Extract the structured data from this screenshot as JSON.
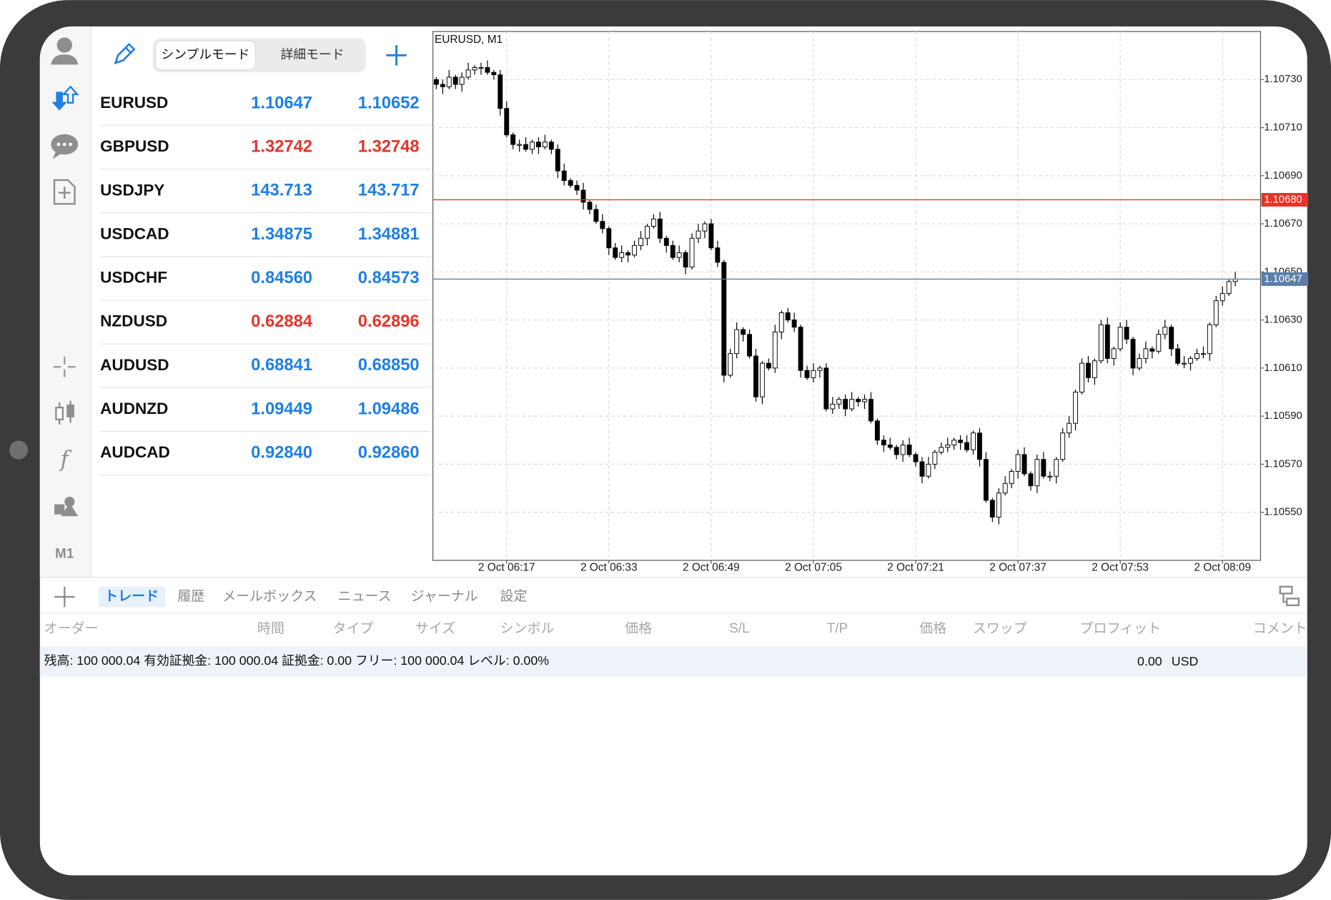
{
  "watchlist": {
    "modes": [
      "シンプルモード",
      "詳細モード"
    ],
    "rows": [
      {
        "symbol": "EURUSD",
        "bid": "1.10647",
        "ask": "1.10652",
        "color": "#1f7fe5"
      },
      {
        "symbol": "GBPUSD",
        "bid": "1.32742",
        "ask": "1.32748",
        "color": "#e2352b"
      },
      {
        "symbol": "USDJPY",
        "bid": "143.713",
        "ask": "143.717",
        "color": "#1f7fe5"
      },
      {
        "symbol": "USDCAD",
        "bid": "1.34875",
        "ask": "1.34881",
        "color": "#1f7fe5"
      },
      {
        "symbol": "USDCHF",
        "bid": "0.84560",
        "ask": "0.84573",
        "color": "#1f7fe5"
      },
      {
        "symbol": "NZDUSD",
        "bid": "0.62884",
        "ask": "0.62896",
        "color": "#e2352b"
      },
      {
        "symbol": "AUDUSD",
        "bid": "0.68841",
        "ask": "0.68850",
        "color": "#1f7fe5"
      },
      {
        "symbol": "AUDNZD",
        "bid": "1.09449",
        "ask": "1.09486",
        "color": "#1f7fe5"
      },
      {
        "symbol": "AUDCAD",
        "bid": "0.92840",
        "ask": "0.92860",
        "color": "#1f7fe5"
      }
    ]
  },
  "sidebar": {
    "timeframe": "M1"
  },
  "chart_data": {
    "type": "candlestick",
    "title": "EURUSD, M1",
    "categories": [
      null,
      null,
      null,
      null,
      null,
      null,
      null,
      null,
      null,
      null,
      null,
      "2 Oct 06:17",
      null,
      null,
      null,
      null,
      null,
      null,
      null,
      null,
      null,
      null,
      null,
      null,
      null,
      null,
      null,
      "2 Oct 06:33",
      null,
      null,
      null,
      null,
      null,
      null,
      null,
      null,
      null,
      null,
      null,
      null,
      null,
      null,
      null,
      "2 Oct 06:49",
      null,
      null,
      null,
      null,
      null,
      null,
      null,
      null,
      null,
      null,
      null,
      null,
      null,
      null,
      null,
      "2 Oct 07:05",
      null,
      null,
      null,
      null,
      null,
      null,
      null,
      null,
      null,
      null,
      null,
      null,
      null,
      null,
      null,
      "2 Oct 07:21",
      null,
      null,
      null,
      null,
      null,
      null,
      null,
      null,
      null,
      null,
      null,
      null,
      null,
      null,
      null,
      "2 Oct 07:37",
      null,
      null,
      null,
      null,
      null,
      null,
      null,
      null,
      null,
      null,
      null,
      null,
      null,
      null,
      null,
      "2 Oct 07:53",
      null,
      null,
      null,
      null,
      null,
      null,
      null,
      null,
      null,
      null,
      null,
      null,
      null,
      null,
      null,
      "2 Oct 08:09",
      null,
      null
    ],
    "open": [
      1.1073,
      1.10728,
      1.10727,
      1.10731,
      1.10728,
      1.10731,
      1.10734,
      1.10735,
      1.10735,
      1.10733,
      1.10732,
      1.10718,
      1.10707,
      1.10703,
      1.10703,
      1.10701,
      1.10704,
      1.10702,
      1.10704,
      1.10701,
      1.10692,
      1.10688,
      1.10686,
      1.10684,
      1.10679,
      1.10676,
      1.10671,
      1.10668,
      1.1066,
      1.10656,
      1.10658,
      1.10657,
      1.10661,
      1.10664,
      1.10669,
      1.10672,
      1.10664,
      1.10661,
      1.10656,
      1.10658,
      1.10652,
      1.10664,
      1.10667,
      1.1067,
      1.1066,
      1.10654,
      1.10607,
      1.10616,
      1.10626,
      1.10624,
      1.10615,
      1.10598,
      1.10612,
      1.1061,
      1.10625,
      1.10633,
      1.1063,
      1.10627,
      1.10609,
      1.10606,
      1.10609,
      1.1061,
      1.10593,
      1.10595,
      1.10597,
      1.10593,
      1.10597,
      1.10596,
      1.10597,
      1.10588,
      1.1058,
      1.10578,
      1.10577,
      1.10574,
      1.10578,
      1.10574,
      1.10571,
      1.10565,
      1.1057,
      1.10575,
      1.10577,
      1.10578,
      1.1058,
      1.10579,
      1.10576,
      1.10583,
      1.10572,
      1.10555,
      1.10548,
      1.10558,
      1.10562,
      1.10567,
      1.10574,
      1.10566,
      1.10561,
      1.10572,
      1.10565,
      1.10565,
      1.10572,
      1.10583,
      1.10587,
      1.106,
      1.10612,
      1.10606,
      1.10613,
      1.10628,
      1.10614,
      1.10618,
      1.10627,
      1.10622,
      1.1061,
      1.10614,
      1.10618,
      1.10617,
      1.10624,
      1.10627,
      1.10618,
      1.10612,
      1.10612,
      1.10614,
      1.10616,
      1.10616,
      1.10628,
      1.10638,
      1.10641,
      1.10646
    ],
    "high": [
      1.10731,
      1.1073,
      1.10734,
      1.10732,
      1.10733,
      1.10737,
      1.10736,
      1.10737,
      1.10738,
      1.10734,
      1.10734,
      1.10721,
      1.10708,
      1.10705,
      1.10706,
      1.10705,
      1.10706,
      1.10707,
      1.10705,
      1.10703,
      1.10695,
      1.10689,
      1.10688,
      1.10687,
      1.1068,
      1.10678,
      1.10674,
      1.10669,
      1.10662,
      1.10661,
      1.10659,
      1.10663,
      1.10667,
      1.1067,
      1.10674,
      1.10675,
      1.10665,
      1.10663,
      1.10661,
      1.10659,
      1.10666,
      1.1067,
      1.10671,
      1.10672,
      1.10663,
      1.10655,
      1.10618,
      1.10629,
      1.10627,
      1.10626,
      1.10618,
      1.10613,
      1.10614,
      1.10628,
      1.10634,
      1.10635,
      1.10633,
      1.10628,
      1.10611,
      1.10612,
      1.10611,
      1.10612,
      1.10598,
      1.10598,
      1.10599,
      1.106,
      1.10598,
      1.10599,
      1.106,
      1.10589,
      1.10582,
      1.10581,
      1.10578,
      1.1058,
      1.10581,
      1.10575,
      1.10573,
      1.10573,
      1.10576,
      1.10579,
      1.10581,
      1.10581,
      1.10582,
      1.10582,
      1.10584,
      1.10585,
      1.10575,
      1.10556,
      1.1056,
      1.10565,
      1.10568,
      1.10576,
      1.10577,
      1.10567,
      1.10574,
      1.10575,
      1.10567,
      1.10573,
      1.10585,
      1.1059,
      1.10601,
      1.10614,
      1.10615,
      1.10614,
      1.1063,
      1.10631,
      1.10619,
      1.10629,
      1.1063,
      1.10623,
      1.10616,
      1.10621,
      1.10619,
      1.10626,
      1.1063,
      1.10628,
      1.1062,
      1.10615,
      1.10615,
      1.10618,
      1.10619,
      1.10629,
      1.1064,
      1.10644,
      1.10647,
      1.1065
    ],
    "low": [
      1.10726,
      1.10724,
      1.10726,
      1.10726,
      1.10725,
      1.1073,
      1.10732,
      1.10732,
      1.10732,
      1.1073,
      1.10715,
      1.10706,
      1.10701,
      1.107,
      1.107,
      1.10699,
      1.10699,
      1.10701,
      1.10699,
      1.10689,
      1.10686,
      1.10685,
      1.10682,
      1.10676,
      1.10674,
      1.1067,
      1.10666,
      1.10657,
      1.10655,
      1.10654,
      1.10654,
      1.10656,
      1.10659,
      1.10661,
      1.10668,
      1.10662,
      1.10658,
      1.10655,
      1.10654,
      1.10649,
      1.10651,
      1.10662,
      1.10664,
      1.10659,
      1.10652,
      1.10604,
      1.10606,
      1.10614,
      1.10621,
      1.10614,
      1.10596,
      1.10595,
      1.10609,
      1.10608,
      1.10622,
      1.10629,
      1.10625,
      1.10606,
      1.10605,
      1.10604,
      1.10606,
      1.10592,
      1.10591,
      1.10593,
      1.1059,
      1.10592,
      1.10594,
      1.10593,
      1.10587,
      1.10578,
      1.10575,
      1.10576,
      1.10572,
      1.10571,
      1.10573,
      1.10569,
      1.10562,
      1.10564,
      1.10568,
      1.10574,
      1.10575,
      1.10576,
      1.10576,
      1.10575,
      1.10574,
      1.10569,
      1.10554,
      1.10546,
      1.10545,
      1.10557,
      1.1056,
      1.10564,
      1.10565,
      1.10559,
      1.10558,
      1.10564,
      1.10563,
      1.10562,
      1.10571,
      1.10581,
      1.10584,
      1.10599,
      1.10604,
      1.10603,
      1.10612,
      1.10612,
      1.10611,
      1.10617,
      1.1062,
      1.10607,
      1.10609,
      1.10612,
      1.10614,
      1.10616,
      1.10622,
      1.10615,
      1.10611,
      1.1061,
      1.10609,
      1.10613,
      1.10614,
      1.10613,
      1.10627,
      1.10636,
      1.1064,
      1.10644
    ],
    "close": [
      1.10728,
      1.10727,
      1.10731,
      1.10728,
      1.10731,
      1.10734,
      1.10735,
      1.10735,
      1.10733,
      1.10732,
      1.10718,
      1.10707,
      1.10703,
      1.10703,
      1.10701,
      1.10704,
      1.10702,
      1.10704,
      1.10701,
      1.10692,
      1.10688,
      1.10686,
      1.10684,
      1.10679,
      1.10676,
      1.10671,
      1.10668,
      1.1066,
      1.10656,
      1.10658,
      1.10657,
      1.10661,
      1.10664,
      1.10669,
      1.10672,
      1.10664,
      1.10661,
      1.10656,
      1.10658,
      1.10652,
      1.10664,
      1.10667,
      1.1067,
      1.1066,
      1.10654,
      1.10607,
      1.10616,
      1.10626,
      1.10624,
      1.10615,
      1.10598,
      1.10612,
      1.1061,
      1.10625,
      1.10633,
      1.1063,
      1.10627,
      1.10609,
      1.10606,
      1.10609,
      1.1061,
      1.10593,
      1.10595,
      1.10597,
      1.10593,
      1.10597,
      1.10596,
      1.10597,
      1.10588,
      1.1058,
      1.10578,
      1.10577,
      1.10574,
      1.10578,
      1.10574,
      1.10571,
      1.10565,
      1.1057,
      1.10575,
      1.10577,
      1.10578,
      1.1058,
      1.10579,
      1.10576,
      1.10583,
      1.10572,
      1.10555,
      1.10548,
      1.10558,
      1.10562,
      1.10567,
      1.10574,
      1.10566,
      1.10561,
      1.10572,
      1.10565,
      1.10565,
      1.10572,
      1.10583,
      1.10587,
      1.106,
      1.10612,
      1.10606,
      1.10613,
      1.10628,
      1.10614,
      1.10618,
      1.10627,
      1.10622,
      1.1061,
      1.10614,
      1.10618,
      1.10617,
      1.10624,
      1.10627,
      1.10618,
      1.10612,
      1.10612,
      1.10614,
      1.10616,
      1.10616,
      1.10628,
      1.10638,
      1.10641,
      1.10646,
      1.10647
    ],
    "ylim": [
      1.1053,
      1.1075
    ],
    "yticks": [
      {
        "value": 1.1073,
        "label": "1.10730"
      },
      {
        "value": 1.1071,
        "label": "1.10710"
      },
      {
        "value": 1.1069,
        "label": "1.10690"
      },
      {
        "value": 1.1067,
        "label": "1.10670"
      },
      {
        "value": 1.1065,
        "label": "1.10650"
      },
      {
        "value": 1.1063,
        "label": "1.10630"
      },
      {
        "value": 1.1061,
        "label": "1.10610"
      },
      {
        "value": 1.1059,
        "label": "1.10590"
      },
      {
        "value": 1.1057,
        "label": "1.10570"
      },
      {
        "value": 1.1055,
        "label": "1.10550"
      }
    ],
    "grid": true,
    "hlines": [
      {
        "value": 1.1068,
        "label": "1.10680",
        "color": "#e8322a"
      },
      {
        "value": 1.10647,
        "label": "1.10647",
        "color": "#5a7ea8"
      }
    ]
  },
  "tabs": [
    "トレード",
    "履歴",
    "メールボックス",
    "ニュース",
    "ジャーナル",
    "設定"
  ],
  "columns": [
    "オーダー",
    "時間",
    "タイプ",
    "サイズ",
    "シンボル",
    "価格",
    "S/L",
    "T/P",
    "価格",
    "スワップ",
    "プロフィット",
    "コメント"
  ],
  "summary": {
    "text": "残高: 100 000.04 有効証拠金: 100 000.04 証拠金: 0.00 フリー: 100 000.04 レベル: 0.00%",
    "profit": "0.00",
    "currency": "USD"
  }
}
